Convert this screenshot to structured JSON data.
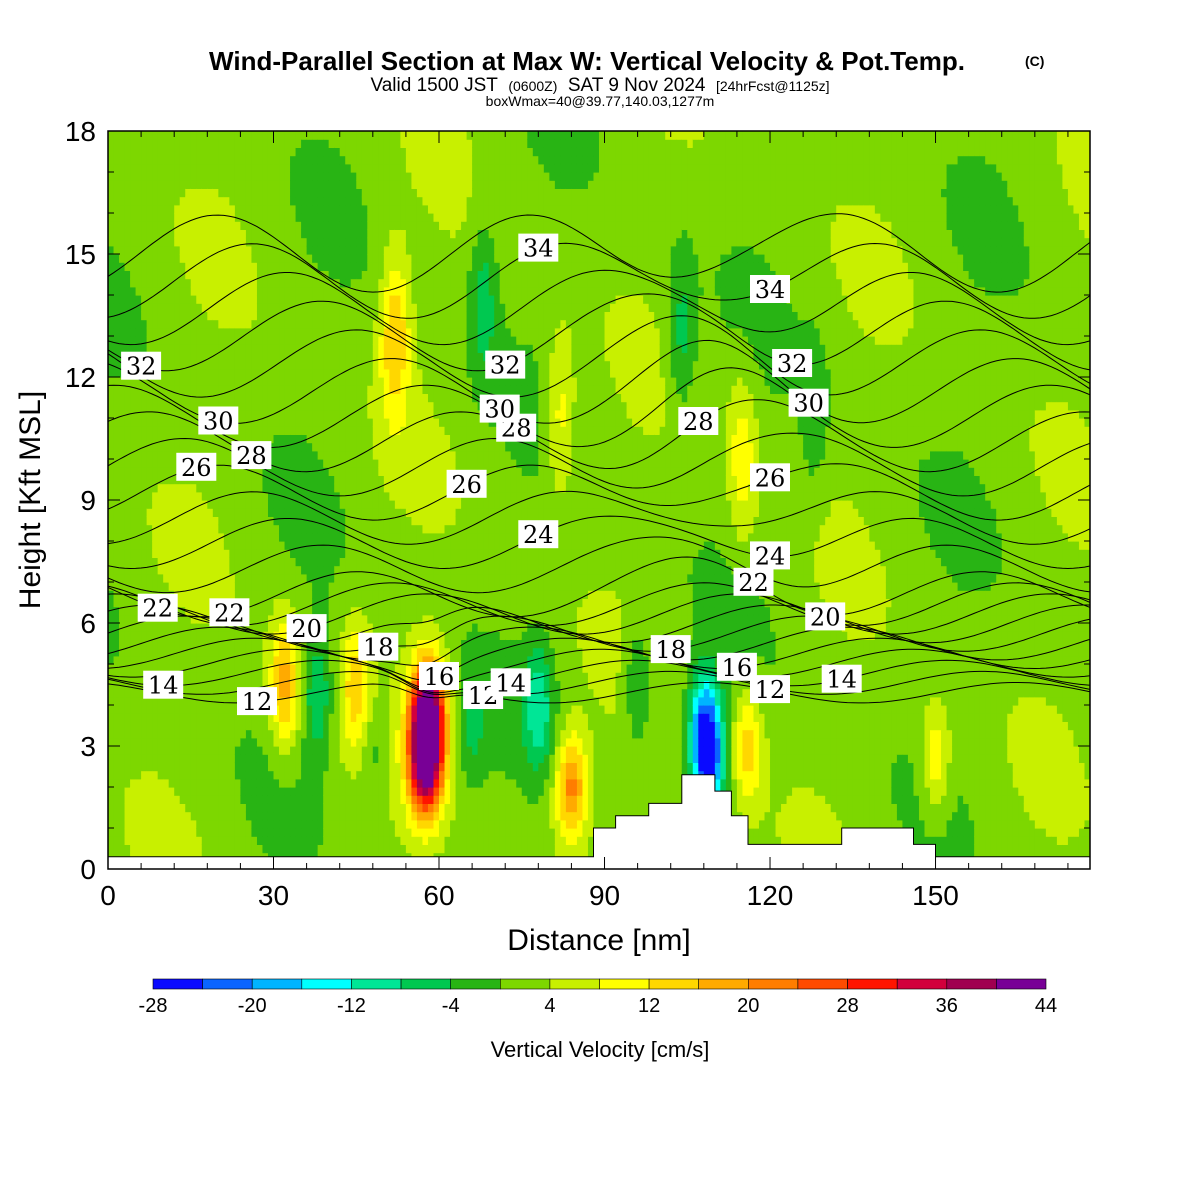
{
  "header": {
    "title": "Wind-Parallel Section at Max W: Vertical Velocity & Pot.Temp.",
    "title_mark": "(C)",
    "subtitle_a": "Valid 1500 JST",
    "subtitle_b": "(0600Z)",
    "subtitle_c": "SAT 9 Nov 2024",
    "subtitle_d": "[24hrFcst@1125z]",
    "box_info": "boxWmax=40@39.77,140.03,1277m"
  },
  "chart_data": {
    "type": "heatmap",
    "title": "Wind-Parallel Section at Max W: Vertical Velocity & Pot.Temp.",
    "xlabel": "Distance [nm]",
    "ylabel": "Height [Kft MSL]",
    "xlim": [
      0,
      178
    ],
    "ylim": [
      0,
      18
    ],
    "x_ticks": [
      "0",
      "30",
      "60",
      "90",
      "120",
      "150"
    ],
    "y_ticks": [
      "0",
      "3",
      "6",
      "9",
      "12",
      "15",
      "18"
    ],
    "colorbar": {
      "title": "Vertical Velocity [cm/s]",
      "levels": [
        -28,
        -24,
        -20,
        -16,
        -12,
        -8,
        -4,
        0,
        4,
        8,
        12,
        16,
        20,
        24,
        28,
        32,
        36,
        40,
        44
      ],
      "tick_labels": [
        "-28",
        "-20",
        "-12",
        "-4",
        "4",
        "12",
        "20",
        "28",
        "36",
        "44"
      ],
      "colors": [
        "#0a0aff",
        "#0a64ff",
        "#00b4ff",
        "#00ffff",
        "#00e696",
        "#00c850",
        "#28b414",
        "#7dd700",
        "#c8f000",
        "#ffff00",
        "#ffd700",
        "#ffaa00",
        "#ff7d00",
        "#ff4b00",
        "#ff1400",
        "#d2003c",
        "#a00050",
        "#780096"
      ]
    },
    "background_w": 2,
    "w_features": [
      {
        "x": 58,
        "z": 3.7,
        "w": 42
      },
      {
        "x": 57.5,
        "z": 2.5,
        "w": 30
      },
      {
        "x": 32,
        "z": 4.5,
        "w": 16
      },
      {
        "x": 45,
        "z": 4.5,
        "w": 12
      },
      {
        "x": 84,
        "z": 2,
        "w": 20
      },
      {
        "x": 116,
        "z": 3,
        "w": 12
      },
      {
        "x": 150,
        "z": 2.7,
        "w": 10
      },
      {
        "x": 52,
        "z": 13,
        "w": 14
      },
      {
        "x": 82,
        "z": 11,
        "w": 9
      },
      {
        "x": 115,
        "z": 10,
        "w": 9
      },
      {
        "x": 108,
        "z": 3.5,
        "w": -18
      },
      {
        "x": 109,
        "z": 2.7,
        "w": -22
      },
      {
        "x": 78,
        "z": 4,
        "w": -12
      },
      {
        "x": 38,
        "z": 4.3,
        "w": -10
      },
      {
        "x": 68,
        "z": 14,
        "w": -8
      },
      {
        "x": 104,
        "z": 13,
        "w": -8
      },
      {
        "x": 128,
        "z": 11,
        "w": -5
      },
      {
        "x": 96,
        "z": 4.5,
        "w": -8
      },
      {
        "x": 66,
        "z": 3.5,
        "w": -6
      },
      {
        "x": 48,
        "z": 3,
        "w": -6
      }
    ],
    "theta_contours": [
      {
        "value": 12,
        "labels": [
          "12",
          "12",
          "12"
        ]
      },
      {
        "value": 14,
        "labels": [
          "14",
          "14",
          "14"
        ]
      },
      {
        "value": 16,
        "labels": [
          "16",
          "16"
        ]
      },
      {
        "value": 18,
        "labels": [
          "18",
          "18"
        ]
      },
      {
        "value": 20,
        "labels": [
          "20",
          "20"
        ]
      },
      {
        "value": 22,
        "labels": [
          "22",
          "22",
          "22"
        ]
      },
      {
        "value": 24,
        "labels": [
          "24",
          "24"
        ]
      },
      {
        "value": 26,
        "labels": [
          "26",
          "26",
          "26"
        ]
      },
      {
        "value": 28,
        "labels": [
          "28",
          "28",
          "28"
        ]
      },
      {
        "value": 30,
        "labels": [
          "30",
          "30",
          "30"
        ]
      },
      {
        "value": 32,
        "labels": [
          "32",
          "32",
          "32"
        ]
      },
      {
        "value": 34,
        "labels": [
          "34",
          "34"
        ]
      }
    ],
    "terrain": [
      {
        "x": 0,
        "z": 0.3
      },
      {
        "x": 88,
        "z": 0.3
      },
      {
        "x": 88,
        "z": 1.0
      },
      {
        "x": 92,
        "z": 1.0
      },
      {
        "x": 92,
        "z": 1.3
      },
      {
        "x": 98,
        "z": 1.3
      },
      {
        "x": 98,
        "z": 1.6
      },
      {
        "x": 104,
        "z": 1.6
      },
      {
        "x": 104,
        "z": 2.3
      },
      {
        "x": 110,
        "z": 2.3
      },
      {
        "x": 110,
        "z": 1.9
      },
      {
        "x": 113,
        "z": 1.9
      },
      {
        "x": 113,
        "z": 1.3
      },
      {
        "x": 116,
        "z": 1.3
      },
      {
        "x": 116,
        "z": 0.6
      },
      {
        "x": 133,
        "z": 0.6
      },
      {
        "x": 133,
        "z": 1.0
      },
      {
        "x": 146,
        "z": 1.0
      },
      {
        "x": 146,
        "z": 0.6
      },
      {
        "x": 150,
        "z": 0.6
      },
      {
        "x": 150,
        "z": 0.3
      },
      {
        "x": 178,
        "z": 0.3
      }
    ]
  }
}
